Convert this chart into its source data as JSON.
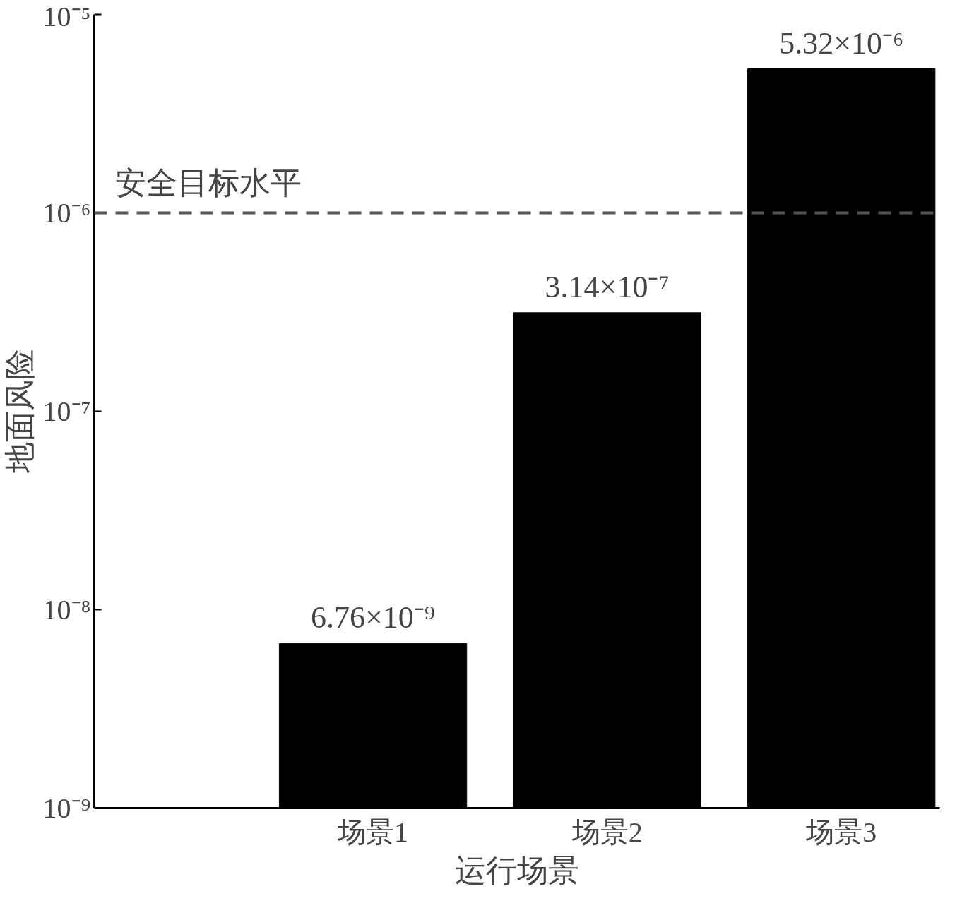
{
  "chart_data": {
    "type": "bar",
    "xlabel": "运行场景",
    "ylabel": "地面风险",
    "categories": [
      "场景1",
      "场景2",
      "场景3"
    ],
    "values": [
      6.76e-09,
      3.14e-07,
      5.32e-06
    ],
    "value_labels": [
      "6.76×10⁻⁹",
      "3.14×10⁻⁷",
      "5.32×10⁻⁶"
    ],
    "color": "#000000",
    "log": true,
    "ylim": [
      1e-09,
      1e-05
    ],
    "yticks": [
      {
        "value": 1e-09,
        "label": "10⁻⁹"
      },
      {
        "value": 1e-08,
        "label": "10⁻⁸"
      },
      {
        "value": 1e-07,
        "label": "10⁻⁷"
      },
      {
        "value": 1e-06,
        "label": "10⁻⁶"
      },
      {
        "value": 1e-05,
        "label": "10⁻⁵"
      }
    ],
    "ref_lines": [
      {
        "axis": "y",
        "value": 1e-06,
        "label": "安全目标水平",
        "color": "#555555",
        "line_style": "dashed"
      }
    ],
    "grid": false
  }
}
